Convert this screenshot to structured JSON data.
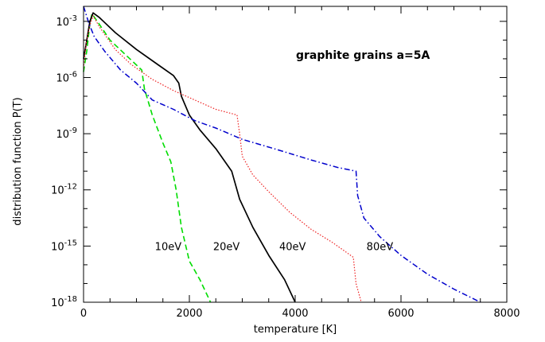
{
  "chart_data": {
    "type": "line",
    "xlabel": "temperature  [K]",
    "ylabel": "distribution  function  P(T)",
    "xlim": [
      0,
      8000
    ],
    "ylim_log10": [
      -18,
      -2.2
    ],
    "y_scale": "log",
    "x_ticks": [
      0,
      2000,
      4000,
      6000,
      8000
    ],
    "x_tick_labels": [
      "0",
      "2000",
      "4000",
      "6000",
      "8000"
    ],
    "y_ticks_exp": [
      -3,
      -6,
      -9,
      -12,
      -15,
      -18
    ],
    "y_tick_base": "10",
    "y_tick_exponents": [
      "-3",
      "-6",
      "-9",
      "-12",
      "-15",
      "-18"
    ],
    "annotation": "graphite grains    a=5A",
    "colors": {
      "10eV": "#00dd00",
      "20eV": "#000000",
      "40eV": "#ee2222",
      "80eV": "#0000cc"
    },
    "series": [
      {
        "name": "10eV",
        "line_style": "dashed",
        "points": [
          [
            0,
            -5.7
          ],
          [
            60,
            -4.6
          ],
          [
            120,
            -3.1
          ],
          [
            160,
            -2.6
          ],
          [
            260,
            -3.0
          ],
          [
            500,
            -4.0
          ],
          [
            800,
            -4.8
          ],
          [
            1100,
            -5.6
          ],
          [
            1150,
            -6.6
          ],
          [
            1300,
            -8.0
          ],
          [
            1500,
            -9.5
          ],
          [
            1650,
            -10.5
          ],
          [
            1750,
            -12.0
          ],
          [
            1850,
            -14.0
          ],
          [
            2000,
            -15.8
          ],
          [
            2200,
            -16.8
          ],
          [
            2400,
            -18.0
          ]
        ]
      },
      {
        "name": "20eV",
        "line_style": "solid",
        "points": [
          [
            0,
            -5.0
          ],
          [
            50,
            -4.2
          ],
          [
            120,
            -3.0
          ],
          [
            180,
            -2.55
          ],
          [
            300,
            -2.8
          ],
          [
            600,
            -3.6
          ],
          [
            1000,
            -4.5
          ],
          [
            1400,
            -5.3
          ],
          [
            1700,
            -5.9
          ],
          [
            1800,
            -6.3
          ],
          [
            1850,
            -7.0
          ],
          [
            2000,
            -8.0
          ],
          [
            2200,
            -8.8
          ],
          [
            2500,
            -9.8
          ],
          [
            2800,
            -11.0
          ],
          [
            2950,
            -12.5
          ],
          [
            3200,
            -14.0
          ],
          [
            3500,
            -15.5
          ],
          [
            3800,
            -16.8
          ],
          [
            4000,
            -18.0
          ]
        ]
      },
      {
        "name": "40eV",
        "line_style": "dotted",
        "points": [
          [
            0,
            -5.5
          ],
          [
            50,
            -4.2
          ],
          [
            120,
            -3.2
          ],
          [
            180,
            -2.7
          ],
          [
            300,
            -3.3
          ],
          [
            600,
            -4.5
          ],
          [
            900,
            -5.3
          ],
          [
            1300,
            -6.1
          ],
          [
            1700,
            -6.7
          ],
          [
            2100,
            -7.2
          ],
          [
            2500,
            -7.7
          ],
          [
            2900,
            -8.0
          ],
          [
            2950,
            -9.0
          ],
          [
            3000,
            -10.2
          ],
          [
            3200,
            -11.2
          ],
          [
            3500,
            -12.1
          ],
          [
            3900,
            -13.2
          ],
          [
            4300,
            -14.1
          ],
          [
            4700,
            -14.8
          ],
          [
            5000,
            -15.4
          ],
          [
            5100,
            -15.6
          ],
          [
            5150,
            -17.0
          ],
          [
            5250,
            -18.0
          ]
        ]
      },
      {
        "name": "80eV",
        "line_style": "dash-dot",
        "points": [
          [
            0,
            -2.2
          ],
          [
            100,
            -3.1
          ],
          [
            200,
            -3.8
          ],
          [
            400,
            -4.6
          ],
          [
            700,
            -5.6
          ],
          [
            1000,
            -6.3
          ],
          [
            1300,
            -7.2
          ],
          [
            1700,
            -7.7
          ],
          [
            2100,
            -8.3
          ],
          [
            2500,
            -8.7
          ],
          [
            3000,
            -9.3
          ],
          [
            3600,
            -9.8
          ],
          [
            4300,
            -10.4
          ],
          [
            4800,
            -10.8
          ],
          [
            5150,
            -11.0
          ],
          [
            5180,
            -12.3
          ],
          [
            5300,
            -13.5
          ],
          [
            5600,
            -14.5
          ],
          [
            6000,
            -15.5
          ],
          [
            6500,
            -16.5
          ],
          [
            7000,
            -17.3
          ],
          [
            7500,
            -18.0
          ]
        ]
      }
    ],
    "series_label_positions": [
      {
        "name": "10eV",
        "x": 1600,
        "y_exp": -15.0
      },
      {
        "name": "20eV",
        "x": 2700,
        "y_exp": -15.0
      },
      {
        "name": "40eV",
        "x": 3950,
        "y_exp": -15.0
      },
      {
        "name": "80eV",
        "x": 5600,
        "y_exp": -15.0
      }
    ]
  }
}
